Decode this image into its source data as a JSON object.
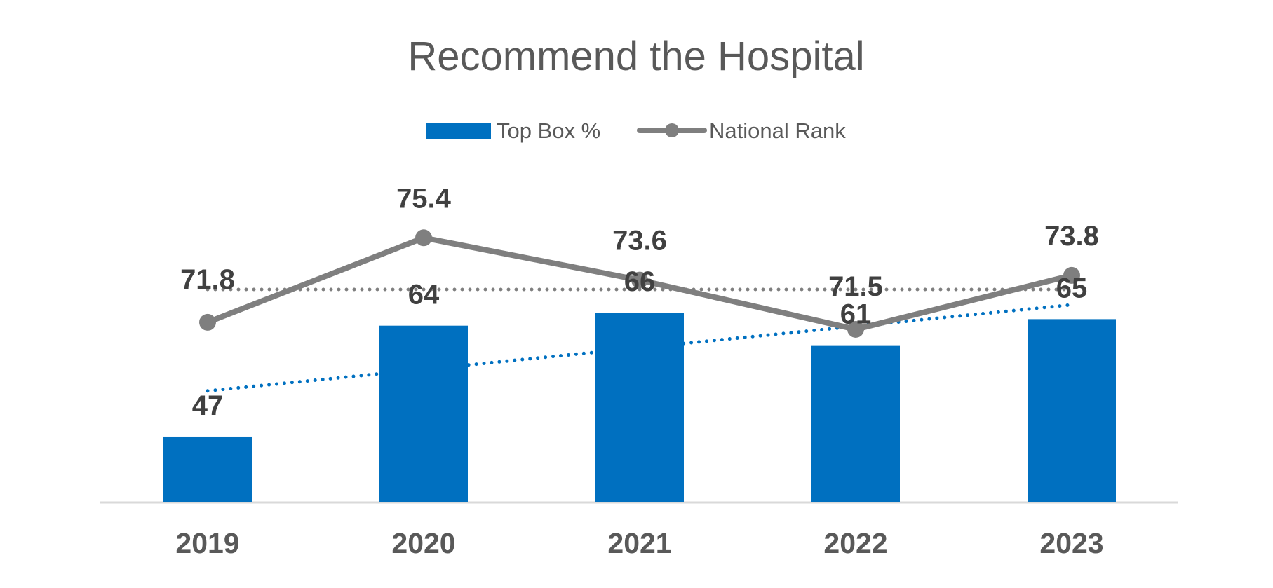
{
  "chart_data": {
    "type": "bar",
    "title": "Recommend the Hospital",
    "categories": [
      "2019",
      "2020",
      "2021",
      "2022",
      "2023"
    ],
    "series": [
      {
        "name": "Top Box %",
        "type": "bar",
        "values": [
          47,
          64,
          66,
          61,
          65
        ],
        "color": "#0070C0",
        "trendline": {
          "style": "dotted",
          "color": "#0070C0"
        }
      },
      {
        "name": "National Rank",
        "type": "line",
        "values": [
          71.8,
          75.4,
          73.6,
          71.5,
          73.8
        ],
        "color": "#7F7F7F",
        "marker": "circle",
        "reference_line": {
          "value": 73.2,
          "style": "dotted",
          "color": "#7F7F7F"
        }
      }
    ],
    "legend": "top-center",
    "grid": false,
    "xlabel": "",
    "ylabel": ""
  }
}
